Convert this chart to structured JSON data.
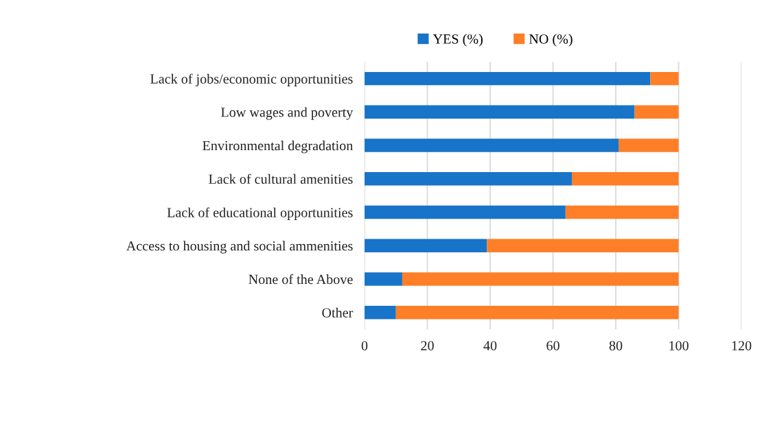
{
  "chart_data": {
    "type": "bar",
    "orientation": "horizontal",
    "stacked": true,
    "categories": [
      "Lack of jobs/economic opportunities",
      "Low wages and poverty",
      "Environmental degradation",
      "Lack of cultural amenities",
      "Lack of educational opportunities",
      "Access to housing and social ammenities",
      "None of the Above",
      "Other"
    ],
    "series": [
      {
        "name": "YES (%)",
        "color": "#1874c8",
        "values": [
          91,
          86,
          81,
          66,
          64,
          39,
          12,
          10
        ]
      },
      {
        "name": "NO (%)",
        "color": "#fe7f27",
        "values": [
          9,
          14,
          19,
          34,
          36,
          61,
          88,
          90
        ]
      }
    ],
    "xlim": [
      0,
      120
    ],
    "xticks": [
      0,
      20,
      40,
      60,
      80,
      100,
      120
    ],
    "grid": "x",
    "legend": "top"
  }
}
